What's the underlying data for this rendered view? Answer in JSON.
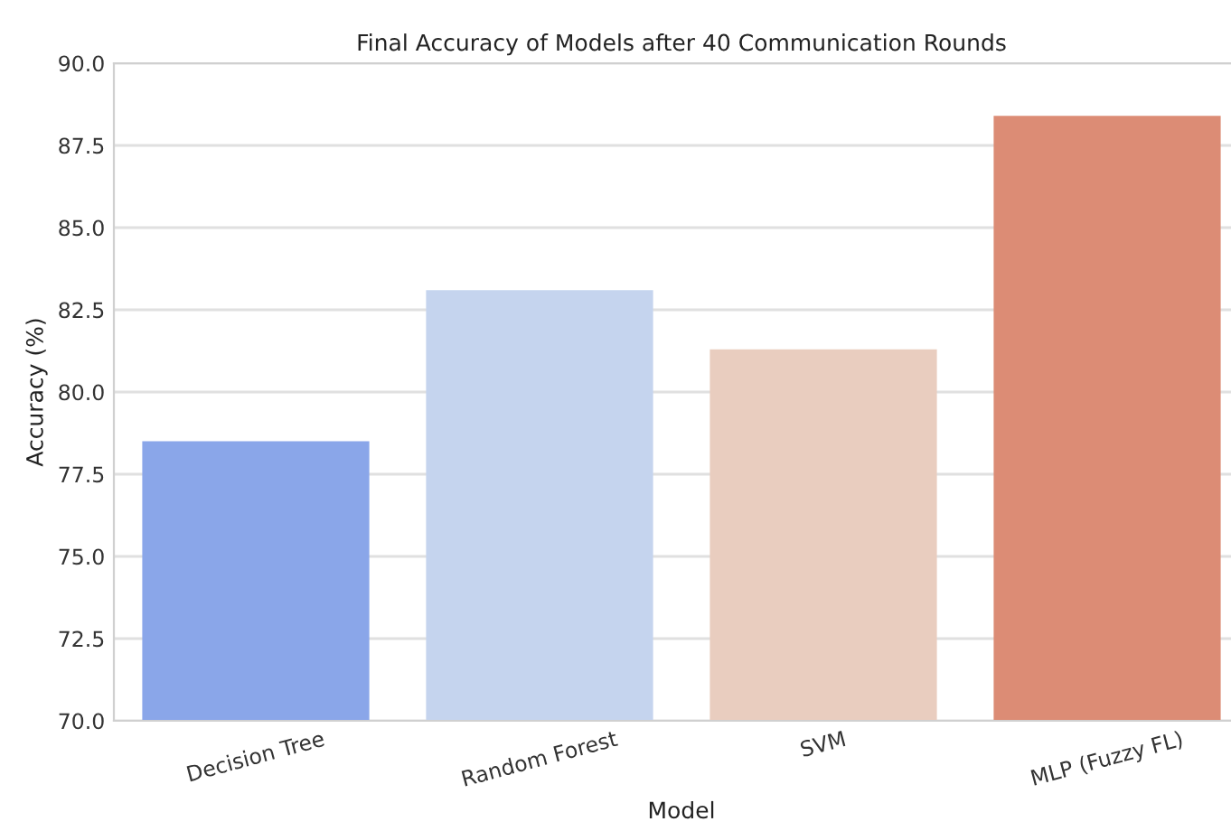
{
  "chart_data": {
    "type": "bar",
    "title": "Final Accuracy of Models after 40 Communication Rounds",
    "xlabel": "Model",
    "ylabel": "Accuracy (%)",
    "categories": [
      "Decision Tree",
      "Random Forest",
      "SVM",
      "MLP (Fuzzy FL)"
    ],
    "values": [
      78.5,
      83.1,
      81.3,
      88.4
    ],
    "colors": [
      "#8aa6e9",
      "#c5d4ee",
      "#e9cdbf",
      "#dc8c75"
    ],
    "ylim": [
      70,
      90
    ],
    "yticks": [
      {
        "value": 70,
        "label": "70.0"
      },
      {
        "value": 72.5,
        "label": "72.5"
      },
      {
        "value": 75,
        "label": "75.0"
      },
      {
        "value": 77.5,
        "label": "77.5"
      },
      {
        "value": 80,
        "label": "80.0"
      },
      {
        "value": 82.5,
        "label": "82.5"
      },
      {
        "value": 85,
        "label": "85.0"
      },
      {
        "value": 87.5,
        "label": "87.5"
      },
      {
        "value": 90,
        "label": "90.0"
      }
    ],
    "grid": "y"
  }
}
